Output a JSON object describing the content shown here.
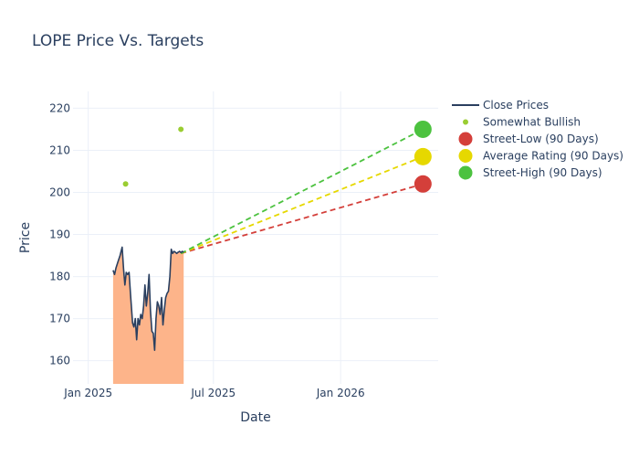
{
  "chart_data": {
    "type": "line",
    "title": "LOPE Price Vs. Targets",
    "xlabel": "Date",
    "ylabel": "Price",
    "x_range": [
      "2024-12-10",
      "2026-05-22"
    ],
    "ylim": [
      154.5,
      224
    ],
    "x_ticks": [
      {
        "date": "2025-01-01",
        "label": "Jan 2025"
      },
      {
        "date": "2025-07-01",
        "label": "Jul 2025"
      },
      {
        "date": "2026-01-01",
        "label": "Jan 2026"
      }
    ],
    "y_ticks": [
      160,
      170,
      180,
      190,
      200,
      210,
      220
    ],
    "grid": true,
    "legend_position": "top-right",
    "colors": {
      "close": "#2a3f5f",
      "fill": "#fdb48a",
      "bullish": "#9acd32",
      "low": "#d43f3a",
      "avg": "#e6d800",
      "high": "#4cc23f"
    },
    "close_prices": {
      "x": [
        "2025-02-06",
        "2025-02-08",
        "2025-02-10",
        "2025-02-13",
        "2025-02-16",
        "2025-02-19",
        "2025-02-21",
        "2025-02-23",
        "2025-02-25",
        "2025-02-27",
        "2025-03-01",
        "2025-03-03",
        "2025-03-06",
        "2025-03-08",
        "2025-03-10",
        "2025-03-12",
        "2025-03-14",
        "2025-03-16",
        "2025-03-18",
        "2025-03-20",
        "2025-03-22",
        "2025-03-24",
        "2025-03-26",
        "2025-03-28",
        "2025-03-30",
        "2025-04-01",
        "2025-04-03",
        "2025-04-05",
        "2025-04-07",
        "2025-04-09",
        "2025-04-11",
        "2025-04-13",
        "2025-04-15",
        "2025-04-17",
        "2025-04-19",
        "2025-04-21",
        "2025-04-23",
        "2025-04-25",
        "2025-04-27",
        "2025-04-29",
        "2025-05-01",
        "2025-05-03",
        "2025-05-05",
        "2025-05-07",
        "2025-05-09",
        "2025-05-11",
        "2025-05-13",
        "2025-05-15",
        "2025-05-17",
        "2025-05-19"
      ],
      "y": [
        181.5,
        180.5,
        182.0,
        183.5,
        185.0,
        187.0,
        182.0,
        178.0,
        181.0,
        180.5,
        181.0,
        176.0,
        169.0,
        168.0,
        170.0,
        165.0,
        170.0,
        168.5,
        171.0,
        170.0,
        173.0,
        178.0,
        173.0,
        176.0,
        180.5,
        172.0,
        167.0,
        166.5,
        162.5,
        170.0,
        174.0,
        173.0,
        171.0,
        175.0,
        168.5,
        172.0,
        175.0,
        176.0,
        176.5,
        180.0,
        186.5,
        185.5,
        186.0,
        185.8,
        185.5,
        185.8,
        186.0,
        185.7,
        186.0,
        185.8
      ]
    },
    "series": [
      {
        "name": "Close Prices",
        "kind": "line"
      },
      {
        "name": "Somewhat Bullish",
        "kind": "markers",
        "points": [
          {
            "x": "2025-02-24",
            "y": 202
          },
          {
            "x": "2025-05-15",
            "y": 215
          }
        ]
      },
      {
        "name": "Street-Low (90 Days)",
        "kind": "target",
        "from": {
          "x": "2025-05-15",
          "y": 185.5
        },
        "to": {
          "x": "2026-04-30",
          "y": 202
        }
      },
      {
        "name": "Average Rating (90 Days)",
        "kind": "target",
        "from": {
          "x": "2025-05-15",
          "y": 185.5
        },
        "to": {
          "x": "2026-04-30",
          "y": 208.5
        }
      },
      {
        "name": "Street-High (90 Days)",
        "kind": "target",
        "from": {
          "x": "2025-05-15",
          "y": 185.5
        },
        "to": {
          "x": "2026-04-30",
          "y": 215
        }
      }
    ]
  }
}
